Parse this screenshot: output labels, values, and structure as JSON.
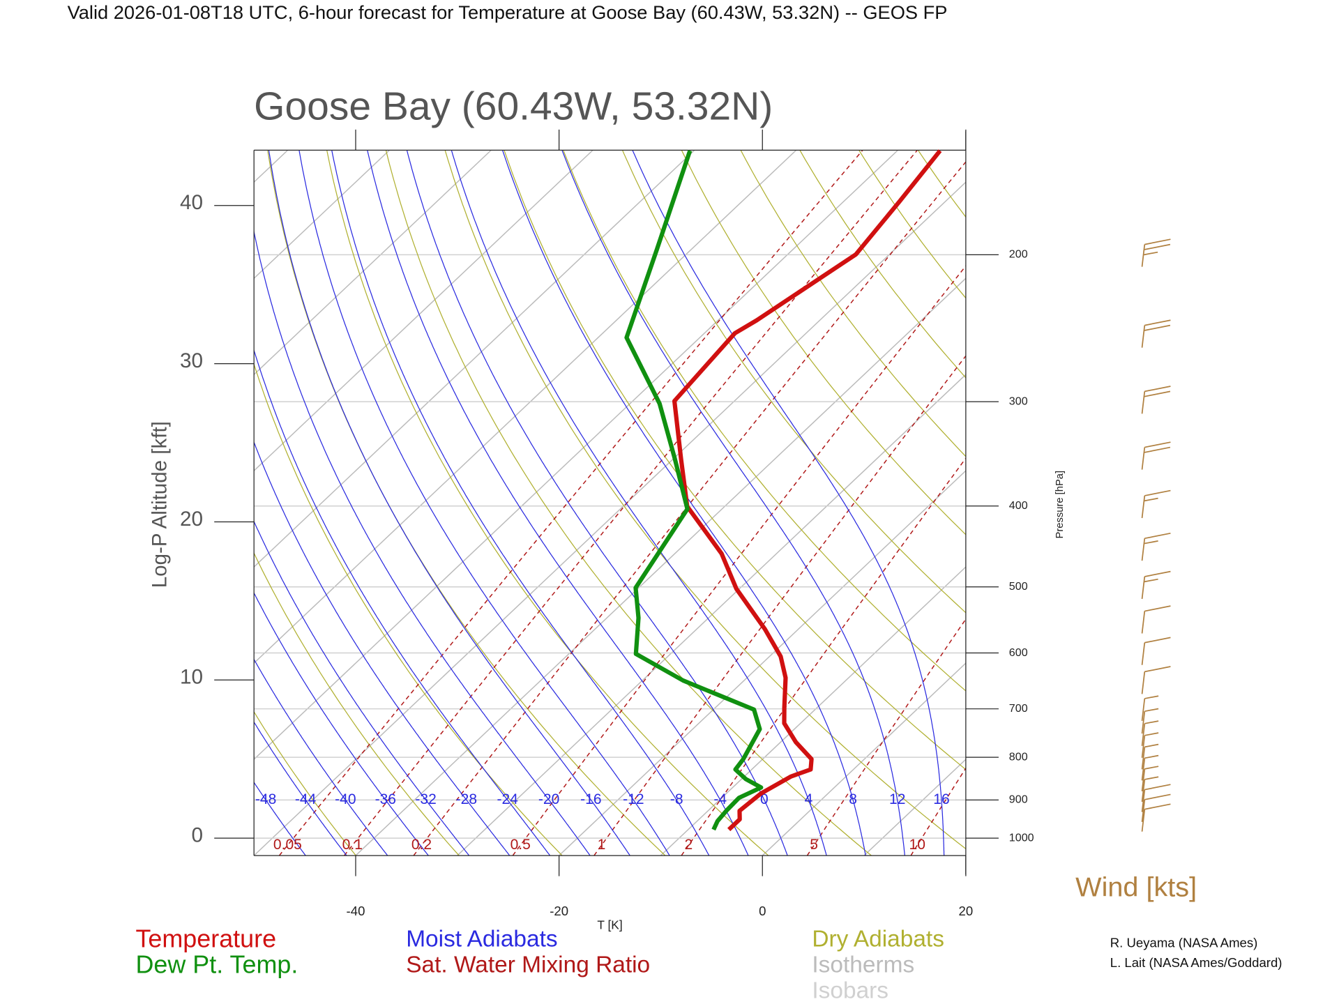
{
  "title": "Valid 2026-01-08T18 UTC, 6-hour forecast for Temperature at Goose Bay (60.43W, 53.32N) -- GEOS FP",
  "chart_data": {
    "type": "skew-t",
    "title": "Goose Bay (60.43W, 53.32N)",
    "x_label": "T [K]",
    "y_label": "Log-P Altitude [kft]",
    "y2_label": "Pressure [hPa]",
    "xlim": [
      -50,
      20
    ],
    "xticks": [
      -40,
      -20,
      0,
      20
    ],
    "ylim": [
      -1.1,
      43.5
    ],
    "yticks": [
      0,
      10,
      20,
      30,
      40
    ],
    "y2ticks": [
      200,
      300,
      400,
      500,
      600,
      700,
      800,
      900,
      1000
    ],
    "series": [
      {
        "name": "Temperature",
        "color": "#d01010",
        "x": [
          -6.0,
          -6.0,
          -6.9,
          -6.6,
          -5.4,
          -4.2,
          -5.2,
          -8.5,
          -11.6,
          -13.2,
          -16.2,
          -18.9,
          -23.3,
          -30.3,
          -35.4,
          -43.7,
          -49.2,
          -55.9,
          -57.0,
          -56.2,
          -53.3,
          -54.5,
          -55.8
        ],
        "y": [
          0.54,
          1.19,
          1.73,
          2.82,
          3.9,
          4.34,
          5.0,
          6.07,
          7.26,
          8.24,
          10.14,
          11.49,
          13.22,
          15.77,
          17.99,
          20.98,
          23.96,
          27.64,
          31.92,
          32.74,
          36.91,
          40.22,
          43.47
        ]
      },
      {
        "name": "Dew Pt. Temp.",
        "color": "#109010",
        "x": [
          -7.5,
          -8.0,
          -8.2,
          -8.3,
          -7.2,
          -9.6,
          -11.6,
          -11.9,
          -13.4,
          -16.0,
          -26.0,
          -33.4,
          -36.9,
          -40.3,
          -43.4,
          -49.8,
          -57.1,
          -67.2,
          -73.4,
          -80.4
        ],
        "y": [
          0.54,
          1.08,
          1.73,
          2.55,
          3.2,
          3.74,
          4.34,
          4.99,
          6.89,
          8.13,
          9.97,
          11.65,
          13.93,
          15.83,
          20.81,
          23.96,
          27.48,
          31.65,
          37.24,
          43.47
        ]
      }
    ],
    "moist_adiabats": {
      "name": "Moist Adiabats",
      "color": "#2a2ae0",
      "values": [
        -48,
        -44,
        -40,
        -36,
        -32,
        -28,
        -24,
        -20,
        -16,
        -12,
        -8,
        -4,
        0,
        4,
        8,
        12,
        16
      ]
    },
    "mixing_ratio": {
      "name": "Sat. Water Mixing Ratio",
      "color": "#b01818",
      "values": [
        0.05,
        0.1,
        0.2,
        0.5,
        1,
        2,
        5,
        10
      ]
    },
    "dry_adiabats": {
      "name": "Dry Adiabats",
      "color": "#b0b030"
    },
    "isotherms": {
      "name": "Isotherms",
      "color": "#bbbbbb"
    },
    "isobars": {
      "name": "Isobars",
      "color": "#d0d0d0"
    },
    "wind": {
      "name": "Wind [kts]",
      "color": "#b08040",
      "pressure": [
        200,
        250,
        300,
        350,
        400,
        450,
        500,
        550,
        600,
        650,
        700,
        725,
        750,
        775,
        800,
        825,
        850,
        875,
        900,
        925,
        950
      ],
      "speed": [
        25,
        20,
        20,
        20,
        15,
        15,
        15,
        10,
        10,
        10,
        5,
        5,
        5,
        5,
        5,
        5,
        5,
        5,
        10,
        10,
        10
      ]
    },
    "credits": [
      "R. Ueyama (NASA Ames)",
      "L. Lait (NASA Ames/Goddard)"
    ]
  }
}
